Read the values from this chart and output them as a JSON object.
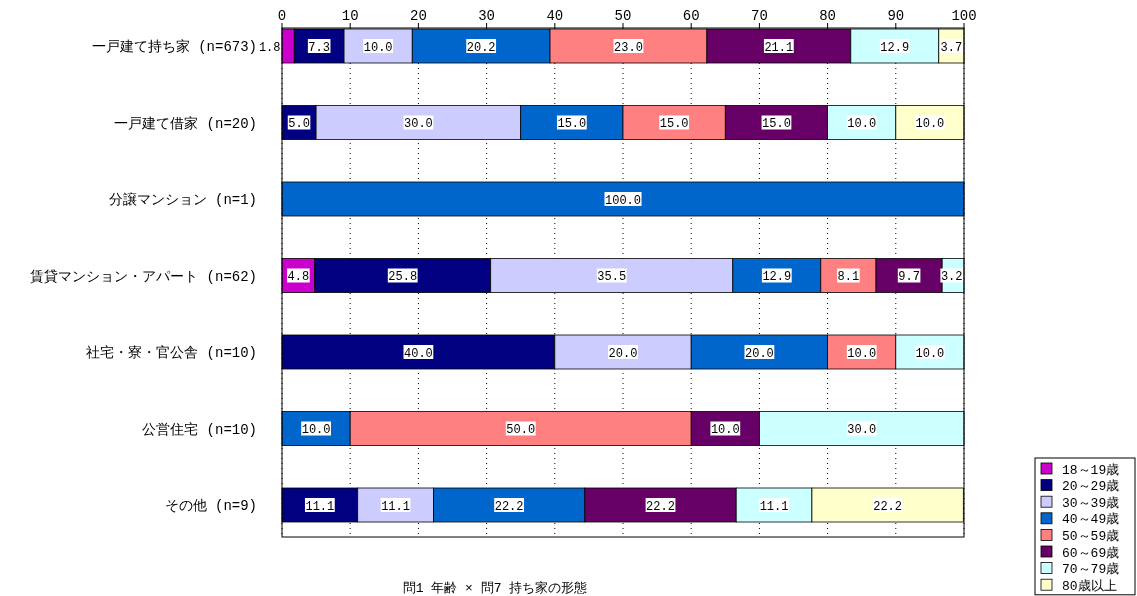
{
  "chart_data": {
    "type": "bar",
    "orientation": "horizontal",
    "stacked": true,
    "title": "問1 年齢 × 問7 持ち家の形態",
    "categories": [
      "一戸建て持ち家 (n=673)",
      "一戸建て借家 (n=20)",
      "分譲マンション (n=1)",
      "賃貸マンション・アパート (n=62)",
      "社宅・寮・官公舎 (n=10)",
      "公営住宅 (n=10)",
      "その他 (n=9)"
    ],
    "series": [
      {
        "name": "18～19歳",
        "color": "#cc00cc",
        "values": [
          1.8,
          null,
          null,
          4.8,
          null,
          null,
          null
        ],
        "value_labels": [
          "1.8",
          null,
          null,
          "4.8",
          null,
          null,
          null
        ]
      },
      {
        "name": "20～29歳",
        "color": "#000080",
        "values": [
          7.3,
          5.0,
          null,
          25.8,
          40.0,
          null,
          11.1
        ],
        "value_labels": [
          "7.3",
          "5.0",
          null,
          "25.8",
          "40.0",
          null,
          "11.1"
        ]
      },
      {
        "name": "30～39歳",
        "color": "#ccccff",
        "values": [
          10.0,
          30.0,
          null,
          35.5,
          20.0,
          null,
          11.1
        ],
        "value_labels": [
          "10.0",
          "30.0",
          null,
          "35.5",
          "20.0",
          null,
          "11.1"
        ]
      },
      {
        "name": "40～49歳",
        "color": "#0066cc",
        "values": [
          20.2,
          15.0,
          100.0,
          12.9,
          20.0,
          10.0,
          22.2
        ],
        "value_labels": [
          "20.2",
          "15.0",
          "100.0",
          "12.9",
          "20.0",
          "10.0",
          "22.2"
        ]
      },
      {
        "name": "50～59歳",
        "color": "#ff8080",
        "values": [
          23.0,
          15.0,
          null,
          8.1,
          10.0,
          50.0,
          null
        ],
        "value_labels": [
          "23.0",
          "15.0",
          null,
          "8.1",
          "10.0",
          "50.0",
          null
        ]
      },
      {
        "name": "60～69歳",
        "color": "#660066",
        "values": [
          21.1,
          15.0,
          null,
          9.7,
          null,
          10.0,
          22.2
        ],
        "value_labels": [
          "21.1",
          "15.0",
          null,
          "9.7",
          null,
          "10.0",
          "22.2"
        ]
      },
      {
        "name": "70～79歳",
        "color": "#ccffff",
        "values": [
          12.9,
          10.0,
          null,
          3.2,
          10.0,
          30.0,
          11.1
        ],
        "value_labels": [
          "12.9",
          "10.0",
          null,
          "3.2",
          "10.0",
          "30.0",
          "11.1"
        ]
      },
      {
        "name": "80歳以上",
        "color": "#ffffcc",
        "values": [
          3.7,
          10.0,
          null,
          null,
          null,
          null,
          22.2
        ],
        "value_labels": [
          "3.7",
          "10.0",
          null,
          null,
          null,
          null,
          "22.2"
        ]
      }
    ],
    "xlim": [
      0,
      100
    ],
    "xticks": [
      0,
      10,
      20,
      30,
      40,
      50,
      60,
      70,
      80,
      90,
      100
    ],
    "grid": "x",
    "legend": "bottom right"
  }
}
